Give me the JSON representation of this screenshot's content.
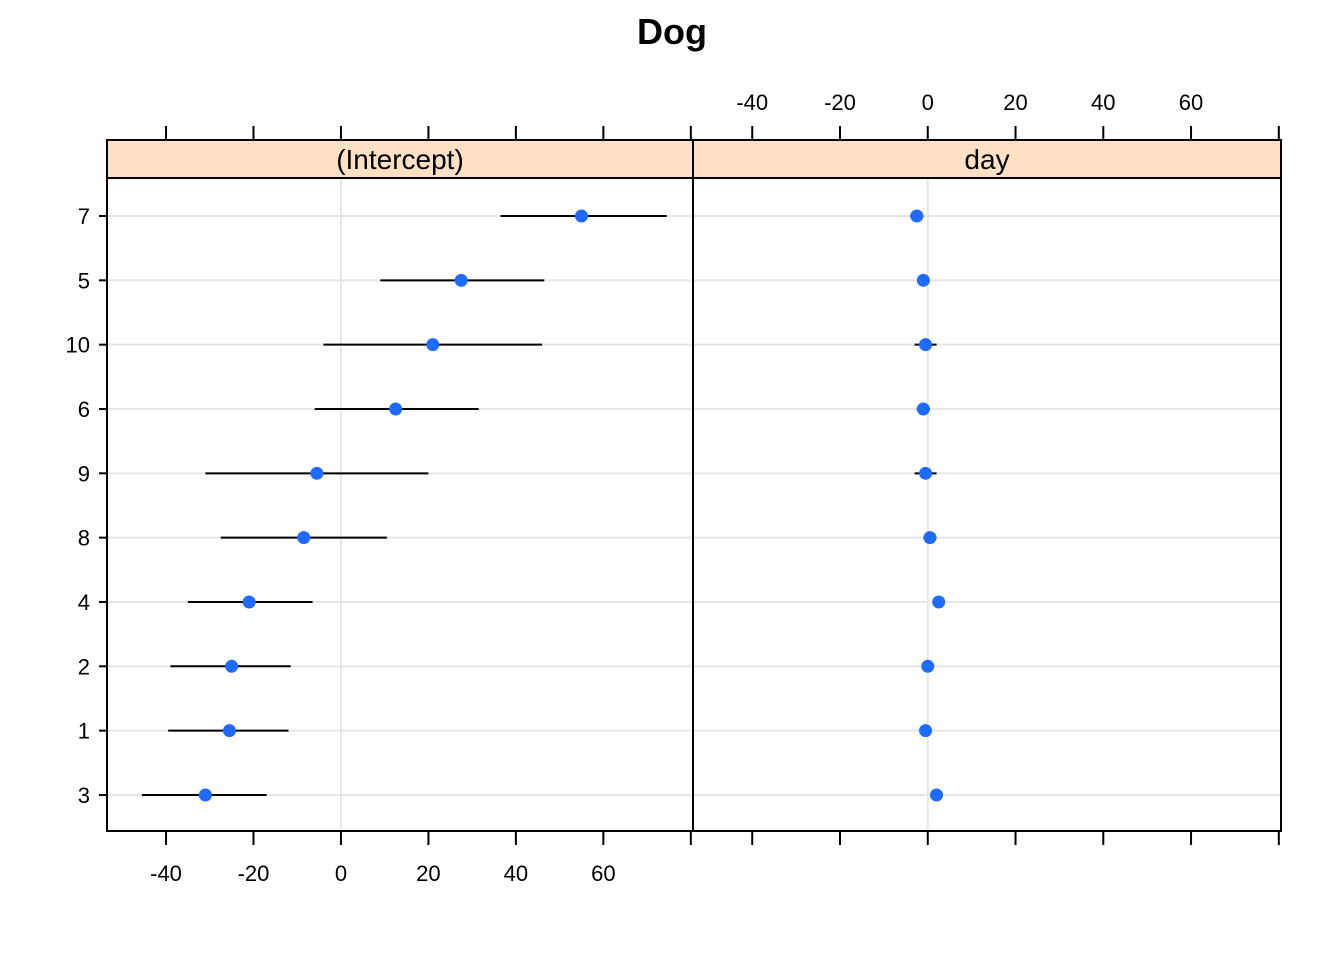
{
  "chart_data": {
    "type": "scatter",
    "title": "Dog",
    "categories": [
      "7",
      "5",
      "10",
      "6",
      "9",
      "8",
      "4",
      "2",
      "1",
      "3"
    ],
    "xlim": [
      -53.5,
      80.5
    ],
    "x_ticks": [
      -40,
      -20,
      0,
      20,
      40,
      60
    ],
    "reference_line": 0,
    "grid": "horizontal",
    "colors": {
      "point": "#1f6bff",
      "interval": "#000000",
      "strip": "#ffe0c4",
      "grid": "#e6e6e6",
      "frame": "#000000"
    },
    "panels": [
      {
        "name": "(Intercept)",
        "points": [
          {
            "group": "7",
            "x": 55.0,
            "lower": 36.5,
            "upper": 74.5
          },
          {
            "group": "5",
            "x": 27.5,
            "lower": 9.0,
            "upper": 46.5
          },
          {
            "group": "10",
            "x": 21.0,
            "lower": -4.0,
            "upper": 46.0
          },
          {
            "group": "6",
            "x": 12.5,
            "lower": -6.0,
            "upper": 31.5
          },
          {
            "group": "9",
            "x": -5.5,
            "lower": -31.0,
            "upper": 20.0
          },
          {
            "group": "8",
            "x": -8.5,
            "lower": -27.5,
            "upper": 10.5
          },
          {
            "group": "4",
            "x": -21.0,
            "lower": -35.0,
            "upper": -6.5
          },
          {
            "group": "2",
            "x": -25.0,
            "lower": -39.0,
            "upper": -11.5
          },
          {
            "group": "1",
            "x": -25.5,
            "lower": -39.5,
            "upper": -12.0
          },
          {
            "group": "3",
            "x": -31.0,
            "lower": -45.5,
            "upper": -17.0
          }
        ]
      },
      {
        "name": "day",
        "points": [
          {
            "group": "7",
            "x": -2.5,
            "lower": -4.0,
            "upper": -1.0
          },
          {
            "group": "5",
            "x": -1.0,
            "lower": -2.0,
            "upper": 0.0
          },
          {
            "group": "10",
            "x": -0.5,
            "lower": -3.0,
            "upper": 2.0
          },
          {
            "group": "6",
            "x": -1.0,
            "lower": -2.5,
            "upper": 0.5
          },
          {
            "group": "9",
            "x": -0.5,
            "lower": -3.0,
            "upper": 2.0
          },
          {
            "group": "8",
            "x": 0.5,
            "lower": -1.0,
            "upper": 2.0
          },
          {
            "group": "4",
            "x": 2.5,
            "lower": 2.5,
            "upper": 2.5
          },
          {
            "group": "2",
            "x": 0.0,
            "lower": 0.0,
            "upper": 0.0
          },
          {
            "group": "1",
            "x": -0.5,
            "lower": -0.5,
            "upper": -0.5
          },
          {
            "group": "3",
            "x": 2.0,
            "lower": 2.0,
            "upper": 2.0
          }
        ]
      }
    ]
  }
}
